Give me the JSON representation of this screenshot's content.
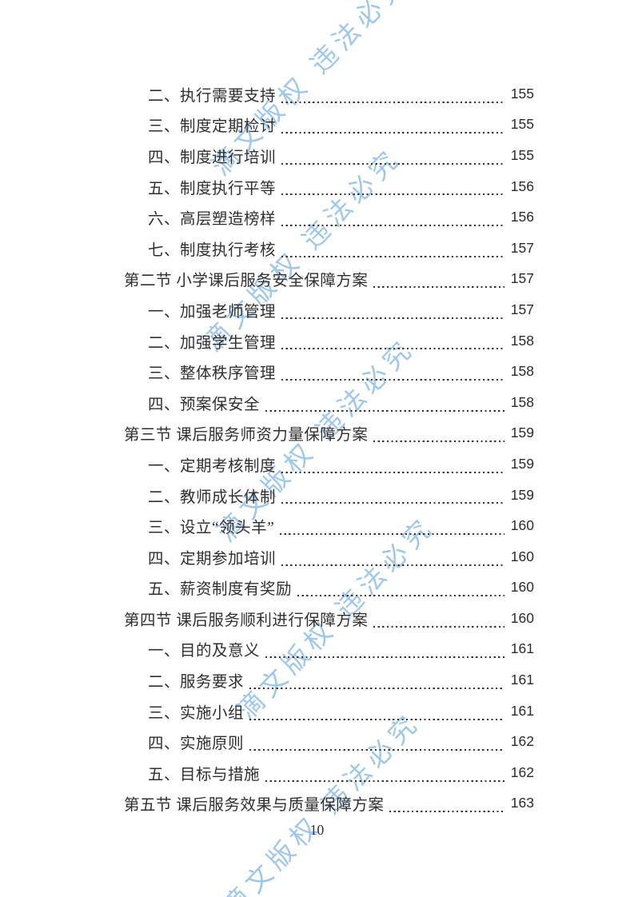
{
  "watermark": {
    "text": "滴文版权 违法必究",
    "color": "#87BAE9"
  },
  "toc": {
    "entries": [
      {
        "level": "sub",
        "label": "二、执行需要支持",
        "page": "155"
      },
      {
        "level": "sub",
        "label": "三、制度定期检讨",
        "page": "155"
      },
      {
        "level": "sub",
        "label": "四、制度进行培训",
        "page": "155"
      },
      {
        "level": "sub",
        "label": "五、制度执行平等",
        "page": "156"
      },
      {
        "level": "sub",
        "label": "六、高层塑造榜样",
        "page": "156"
      },
      {
        "level": "sub",
        "label": "七、制度执行考核",
        "page": "157"
      },
      {
        "level": "section",
        "label": "第二节 小学课后服务安全保障方案",
        "page": "157"
      },
      {
        "level": "sub",
        "label": "一、加强老师管理",
        "page": "157"
      },
      {
        "level": "sub",
        "label": "二、加强学生管理",
        "page": "158"
      },
      {
        "level": "sub",
        "label": "三、整体秩序管理",
        "page": "158"
      },
      {
        "level": "sub",
        "label": "四、预案保安全",
        "page": "158"
      },
      {
        "level": "section",
        "label": "第三节 课后服务师资力量保障方案",
        "page": "159"
      },
      {
        "level": "sub",
        "label": "一、定期考核制度",
        "page": "159"
      },
      {
        "level": "sub",
        "label": "二、教师成长体制",
        "page": "159"
      },
      {
        "level": "sub",
        "label": "三、设立“领头羊”",
        "page": "160"
      },
      {
        "level": "sub",
        "label": "四、定期参加培训",
        "page": "160"
      },
      {
        "level": "sub",
        "label": "五、薪资制度有奖励",
        "page": "160"
      },
      {
        "level": "section",
        "label": "第四节 课后服务顺利进行保障方案",
        "page": "160"
      },
      {
        "level": "sub",
        "label": "一、目的及意义",
        "page": "161"
      },
      {
        "level": "sub",
        "label": "二、服务要求",
        "page": "161"
      },
      {
        "level": "sub",
        "label": "三、实施小组",
        "page": "161"
      },
      {
        "level": "sub",
        "label": "四、实施原则",
        "page": "162"
      },
      {
        "level": "sub",
        "label": "五、目标与措施",
        "page": "162"
      },
      {
        "level": "section",
        "label": "第五节 课后服务效果与质量保障方案",
        "page": "163"
      }
    ]
  },
  "footer": {
    "page_number": "10"
  }
}
